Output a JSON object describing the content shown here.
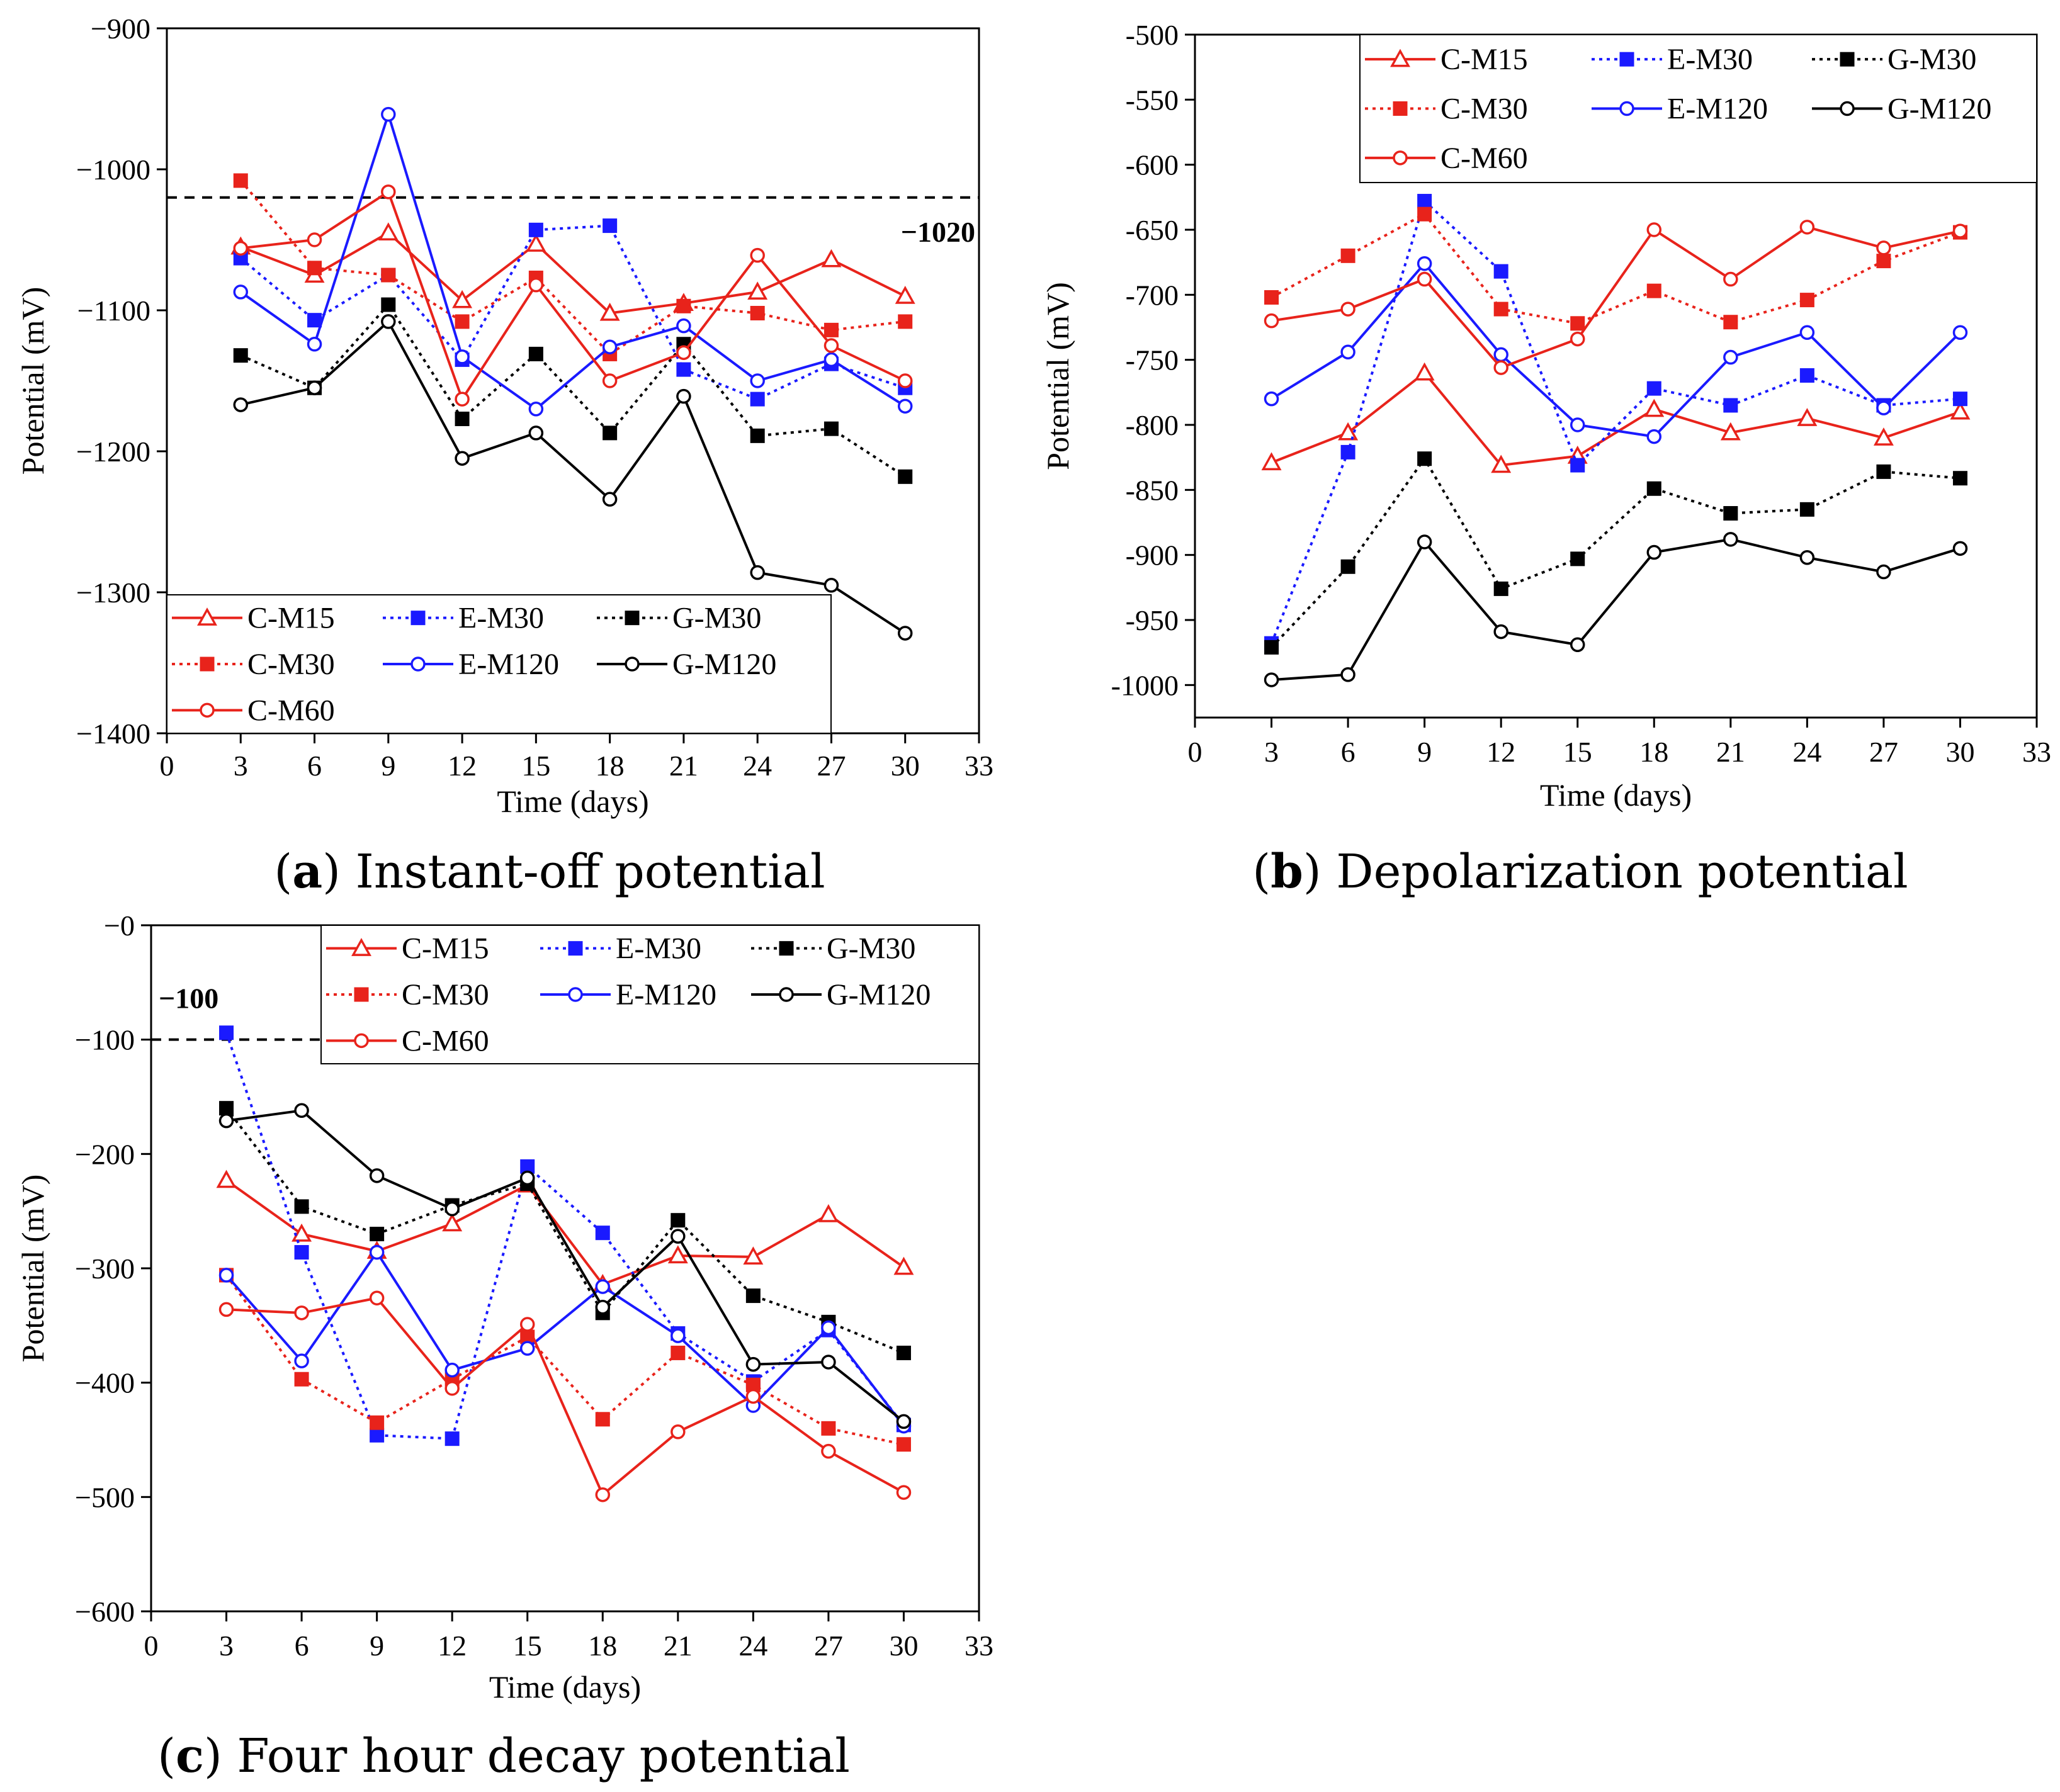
{
  "series_styles": {
    "C-M15": {
      "color": "#e8231b",
      "dash": "solid",
      "marker": "triangle-open"
    },
    "C-M30": {
      "color": "#e8231b",
      "dash": "dotted",
      "marker": "square-filled"
    },
    "C-M60": {
      "color": "#e8231b",
      "dash": "solid",
      "marker": "circle-open"
    },
    "E-M30": {
      "color": "#1a1aff",
      "dash": "dotted",
      "marker": "square-filled"
    },
    "E-M120": {
      "color": "#1a1aff",
      "dash": "solid",
      "marker": "circle-open"
    },
    "G-M30": {
      "color": "#000000",
      "dash": "dotted",
      "marker": "square-filled"
    },
    "G-M120": {
      "color": "#000000",
      "dash": "solid",
      "marker": "circle-open"
    }
  },
  "chart_data": [
    {
      "id": "a",
      "type": "line",
      "caption_letter": "a",
      "caption_text": " Instant-off potential",
      "xlabel": "Time (days)",
      "ylabel": "Potential (mV)",
      "xlim": [
        0,
        33
      ],
      "ylim": [
        -1400,
        -900
      ],
      "xticks": [
        0,
        3,
        6,
        9,
        12,
        15,
        18,
        21,
        24,
        27,
        30,
        33
      ],
      "yticks": [
        -900,
        -1000,
        -1100,
        -1200,
        -1300,
        -1400
      ],
      "ytick_labels": [
        "−900",
        "−1000",
        "−1100",
        "−1200",
        "−1300",
        "−1400"
      ],
      "x": [
        3,
        6,
        9,
        12,
        15,
        18,
        21,
        24,
        27,
        30
      ],
      "reference": {
        "value": -1020,
        "label": "−1020"
      },
      "legend_position": "bottom-left",
      "series": [
        {
          "name": "C-M15",
          "values": [
            -1055,
            -1075,
            -1045,
            -1093,
            -1053,
            -1102,
            -1095,
            -1087,
            -1064,
            -1090
          ]
        },
        {
          "name": "E-M30",
          "values": [
            -1063,
            -1107,
            -1075,
            -1135,
            -1043,
            -1040,
            -1142,
            -1163,
            -1138,
            -1155
          ]
        },
        {
          "name": "G-M30",
          "values": [
            -1132,
            -1155,
            -1096,
            -1177,
            -1131,
            -1187,
            -1124,
            -1189,
            -1184,
            -1218
          ]
        },
        {
          "name": "C-M30",
          "values": [
            -1008,
            -1070,
            -1075,
            -1108,
            -1077,
            -1131,
            -1097,
            -1102,
            -1114,
            -1108
          ]
        },
        {
          "name": "E-M120",
          "values": [
            -1087,
            -1124,
            -961,
            -1133,
            -1170,
            -1126,
            -1111,
            -1150,
            -1135,
            -1168
          ]
        },
        {
          "name": "G-M120",
          "values": [
            -1167,
            -1155,
            -1108,
            -1205,
            -1187,
            -1234,
            -1161,
            -1286,
            -1295,
            -1329
          ]
        },
        {
          "name": "C-M60",
          "values": [
            -1056,
            -1050,
            -1016,
            -1163,
            -1082,
            -1150,
            -1130,
            -1061,
            -1125,
            -1150
          ]
        }
      ]
    },
    {
      "id": "b",
      "type": "line",
      "caption_letter": "b",
      "caption_text": " Depolarization potential",
      "xlabel": "Time (days)",
      "ylabel": "Potential (mV)",
      "xlim": [
        0,
        33
      ],
      "ylim": [
        -1025,
        -500
      ],
      "xticks": [
        0,
        3,
        6,
        9,
        12,
        15,
        18,
        21,
        24,
        27,
        30,
        33
      ],
      "yticks": [
        -500,
        -550,
        -600,
        -650,
        -700,
        -750,
        -800,
        -850,
        -900,
        -950,
        -1000
      ],
      "ytick_labels": [
        "-500",
        "-550",
        "-600",
        "-650",
        "-700",
        "-750",
        "-800",
        "-850",
        "-900",
        "-950",
        "-1000"
      ],
      "x": [
        3,
        6,
        9,
        12,
        15,
        18,
        21,
        24,
        27,
        30
      ],
      "legend_position": "top-right",
      "series": [
        {
          "name": "C-M15",
          "values": [
            -829,
            -806,
            -760,
            -831,
            -824,
            -788,
            -806,
            -795,
            -810,
            -790
          ]
        },
        {
          "name": "E-M30",
          "values": [
            -968,
            -821,
            -628,
            -682,
            -831,
            -772,
            -785,
            -762,
            -785,
            -780
          ]
        },
        {
          "name": "G-M30",
          "values": [
            -971,
            -909,
            -826,
            -926,
            -903,
            -849,
            -868,
            -865,
            -836,
            -841
          ]
        },
        {
          "name": "C-M30",
          "values": [
            -702,
            -670,
            -638,
            -711,
            -722,
            -697,
            -721,
            -704,
            -674,
            -652
          ]
        },
        {
          "name": "E-M120",
          "values": [
            -780,
            -744,
            -676,
            -746,
            -800,
            -809,
            -748,
            -729,
            -787,
            -729
          ]
        },
        {
          "name": "G-M120",
          "values": [
            -996,
            -992,
            -890,
            -959,
            -969,
            -898,
            -888,
            -902,
            -913,
            -895
          ]
        },
        {
          "name": "C-M60",
          "values": [
            -720,
            -711,
            -688,
            -756,
            -734,
            -650,
            -688,
            -648,
            -664,
            -651
          ]
        }
      ]
    },
    {
      "id": "c",
      "type": "line",
      "caption_letter": "c",
      "caption_text": " Four hour decay potential",
      "xlabel": "Time (days)",
      "ylabel": "Potential (mV)",
      "xlim": [
        0,
        33
      ],
      "ylim": [
        -600,
        0
      ],
      "xticks": [
        0,
        3,
        6,
        9,
        12,
        15,
        18,
        21,
        24,
        27,
        30,
        33
      ],
      "yticks": [
        0,
        -100,
        -200,
        -300,
        -400,
        -500,
        -600
      ],
      "ytick_labels": [
        "−0",
        "−100",
        "−200",
        "−300",
        "−400",
        "−500",
        "−600"
      ],
      "x": [
        3,
        6,
        9,
        12,
        15,
        18,
        21,
        24,
        27,
        30
      ],
      "reference": {
        "value": -100,
        "label": "−100"
      },
      "legend_position": "top-right",
      "series": [
        {
          "name": "C-M15",
          "values": [
            -223,
            -270,
            -285,
            -261,
            -227,
            -314,
            -289,
            -290,
            -253,
            -299
          ]
        },
        {
          "name": "E-M30",
          "values": [
            -94,
            -286,
            -446,
            -449,
            -211,
            -269,
            -357,
            -399,
            -354,
            -437
          ]
        },
        {
          "name": "G-M30",
          "values": [
            -160,
            -246,
            -270,
            -245,
            -226,
            -339,
            -258,
            -324,
            -347,
            -374
          ]
        },
        {
          "name": "C-M30",
          "values": [
            -306,
            -397,
            -435,
            -397,
            -360,
            -432,
            -374,
            -402,
            -440,
            -454
          ]
        },
        {
          "name": "E-M120",
          "values": [
            -306,
            -381,
            -286,
            -389,
            -370,
            -316,
            -359,
            -420,
            -352,
            -438
          ]
        },
        {
          "name": "G-M120",
          "values": [
            -171,
            -162,
            -219,
            -248,
            -221,
            -334,
            -272,
            -384,
            -382,
            -434
          ]
        },
        {
          "name": "C-M60",
          "values": [
            -336,
            -339,
            -326,
            -405,
            -349,
            -498,
            -443,
            -412,
            -460,
            -496
          ]
        }
      ]
    }
  ]
}
